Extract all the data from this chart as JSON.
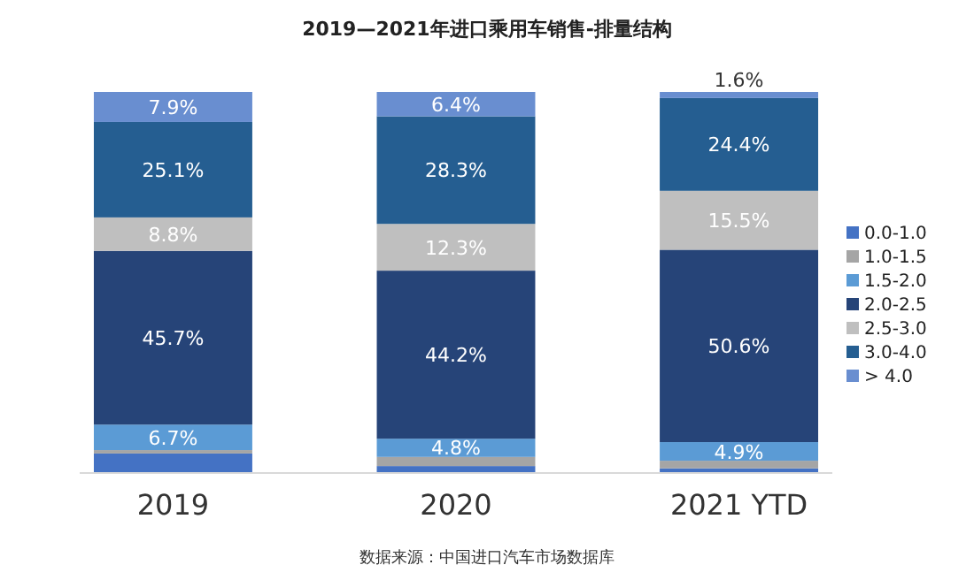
{
  "chart_data": {
    "type": "bar",
    "stacked": true,
    "title": "2019—2021年进口乘用车销售-排量结构",
    "categories": [
      "2019",
      "2020",
      "2021 YTD"
    ],
    "legend": "right",
    "annotations": [
      "数据来源：中国进口汽车市场数据库"
    ],
    "series": [
      {
        "name": "0.0-1.0",
        "color": "#4472c4",
        "values": [
          4.9,
          1.6,
          1.0
        ],
        "value_labels": [
          null,
          null,
          null
        ]
      },
      {
        "name": "1.0-1.5",
        "color": "#a5a5a5",
        "values": [
          0.9,
          2.4,
          2.0
        ],
        "value_labels": [
          null,
          null,
          null
        ]
      },
      {
        "name": "1.5-2.0",
        "color": "#5b9bd5",
        "values": [
          6.7,
          4.8,
          4.9
        ],
        "value_labels": [
          "6.7%",
          "4.8%",
          "4.9%"
        ]
      },
      {
        "name": "2.0-2.5",
        "color": "#264478",
        "values": [
          45.7,
          44.2,
          50.6
        ],
        "value_labels": [
          "45.7%",
          "44.2%",
          "50.6%"
        ]
      },
      {
        "name": "2.5-3.0",
        "color": "#bfbfbf",
        "values": [
          8.8,
          12.3,
          15.5
        ],
        "value_labels": [
          "8.8%",
          "12.3%",
          "15.5%"
        ]
      },
      {
        "name": "3.0-4.0",
        "color": "#255e91",
        "values": [
          25.1,
          28.3,
          24.4
        ],
        "value_labels": [
          "25.1%",
          "28.3%",
          "24.4%"
        ]
      },
      {
        "name": "> 4.0",
        "color": "#698ed0",
        "values": [
          7.9,
          6.4,
          1.6
        ],
        "value_labels": [
          "7.9%",
          "6.4%",
          "1.6%"
        ]
      }
    ]
  }
}
